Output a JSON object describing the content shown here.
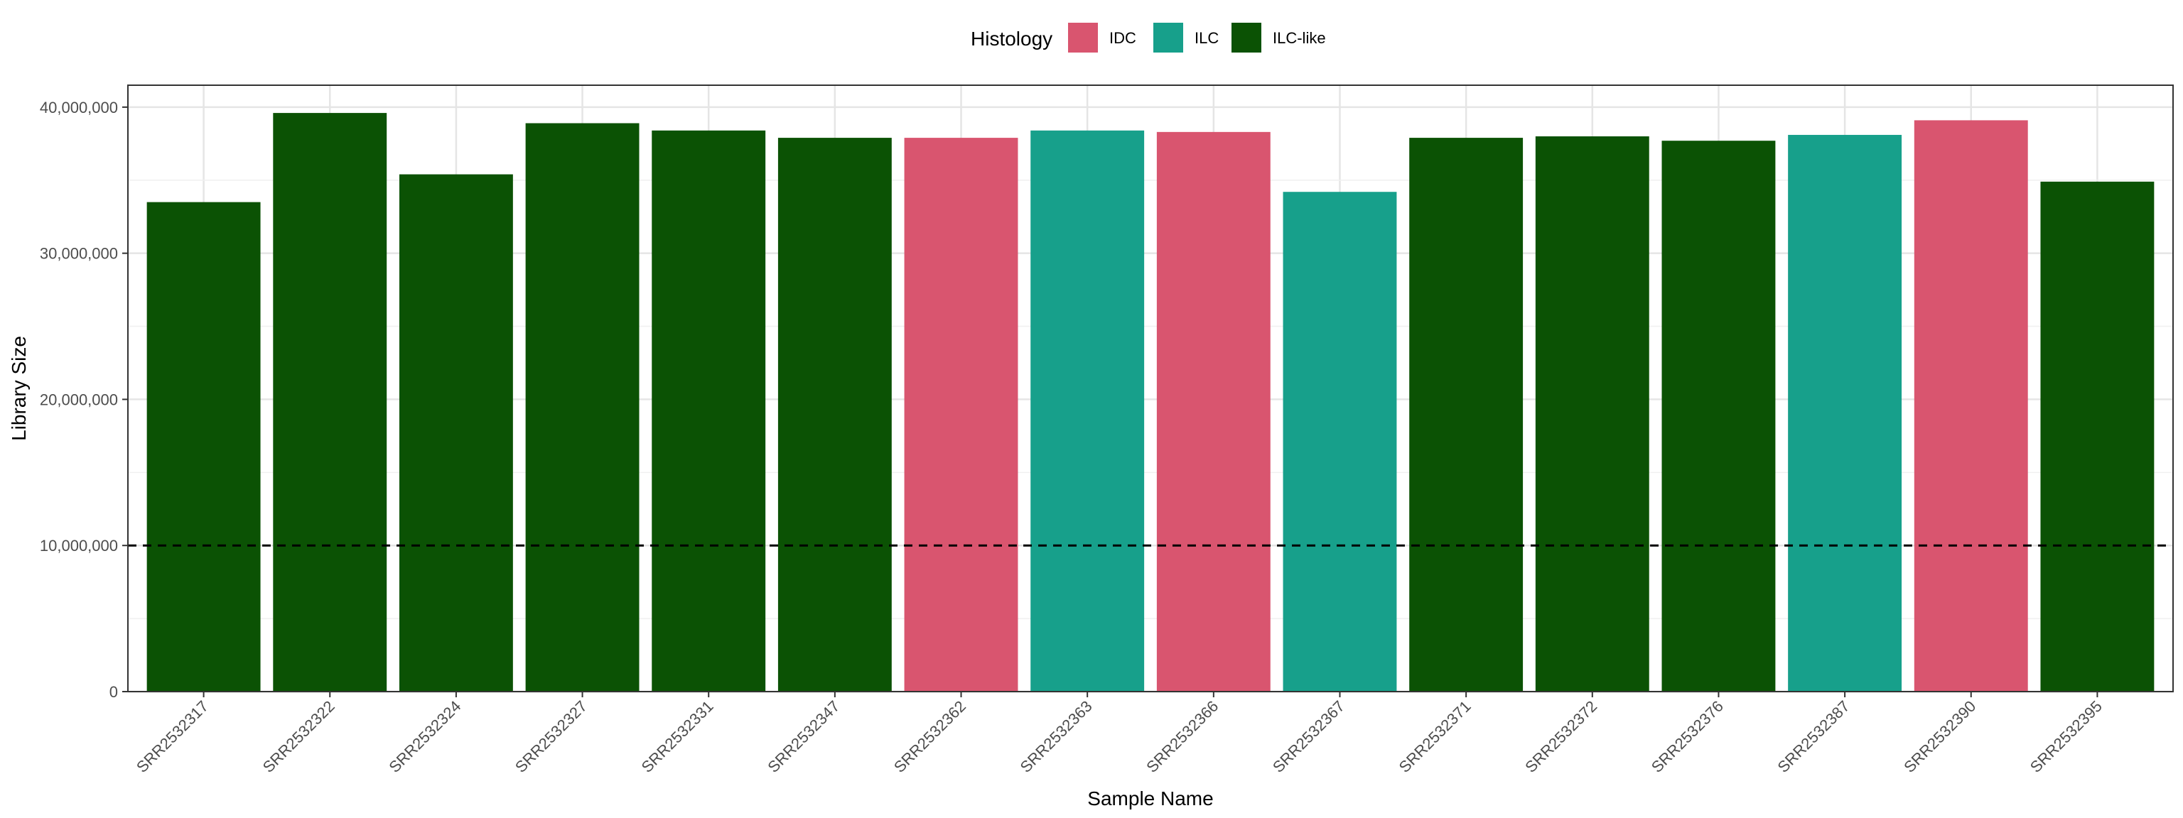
{
  "chart_data": {
    "type": "bar",
    "title": "",
    "xlabel": "Sample Name",
    "ylabel": "Library Size",
    "ylim": [
      0,
      41500000
    ],
    "yticks": [
      0,
      10000000,
      20000000,
      30000000,
      40000000
    ],
    "ytick_labels": [
      "0",
      "10,000,000",
      "20,000,000",
      "30,000,000",
      "40,000,000"
    ],
    "grid": true,
    "legend_position": "top",
    "legend_title": "Histology",
    "groups": [
      {
        "name": "IDC",
        "color": "#d9556f"
      },
      {
        "name": "ILC",
        "color": "#17a08b"
      },
      {
        "name": "ILC-like",
        "color": "#0b5204"
      }
    ],
    "categories": [
      "SRR2532317",
      "SRR2532322",
      "SRR2532324",
      "SRR2532327",
      "SRR2532331",
      "SRR2532347",
      "SRR2532362",
      "SRR2532363",
      "SRR2532366",
      "SRR2532367",
      "SRR2532371",
      "SRR2532372",
      "SRR2532376",
      "SRR2532387",
      "SRR2532390",
      "SRR2532395"
    ],
    "values": [
      33500000,
      39600000,
      35400000,
      38900000,
      38400000,
      37900000,
      37900000,
      38400000,
      38300000,
      34200000,
      37900000,
      38000000,
      37700000,
      38100000,
      39100000,
      34900000
    ],
    "histology": [
      "ILC-like",
      "ILC-like",
      "ILC-like",
      "ILC-like",
      "ILC-like",
      "ILC-like",
      "IDC",
      "ILC",
      "IDC",
      "ILC",
      "ILC-like",
      "ILC-like",
      "ILC-like",
      "ILC",
      "IDC",
      "ILC-like"
    ],
    "reference_line": {
      "y": 10000000,
      "style": "dashed",
      "color": "#000000"
    }
  }
}
